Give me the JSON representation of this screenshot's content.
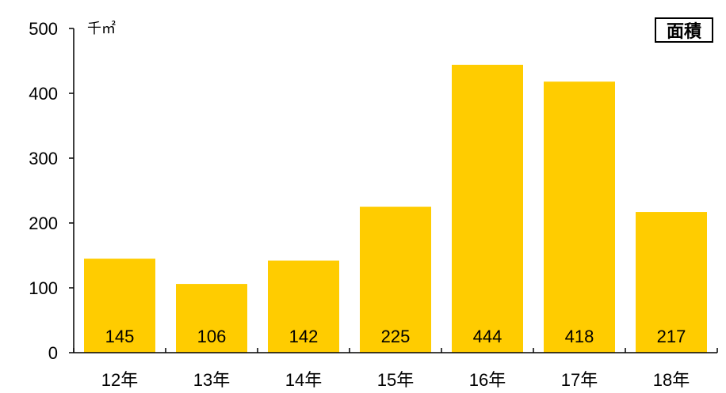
{
  "chart_data": {
    "type": "bar",
    "categories": [
      "12年",
      "13年",
      "14年",
      "15年",
      "16年",
      "17年",
      "18年"
    ],
    "series": [
      {
        "name": "面積",
        "values": [
          145,
          106,
          142,
          225,
          444,
          418,
          217
        ]
      }
    ],
    "value_labels": [
      "145",
      "106",
      "142",
      "225",
      "444",
      "418",
      "217"
    ],
    "title": "",
    "xlabel": "",
    "ylabel": "千㎡",
    "ylim": [
      0,
      500
    ],
    "yticks": [
      0,
      100,
      200,
      300,
      400,
      500
    ],
    "grid": false,
    "legend": "top-right",
    "bar_color": "#FFCC00"
  }
}
